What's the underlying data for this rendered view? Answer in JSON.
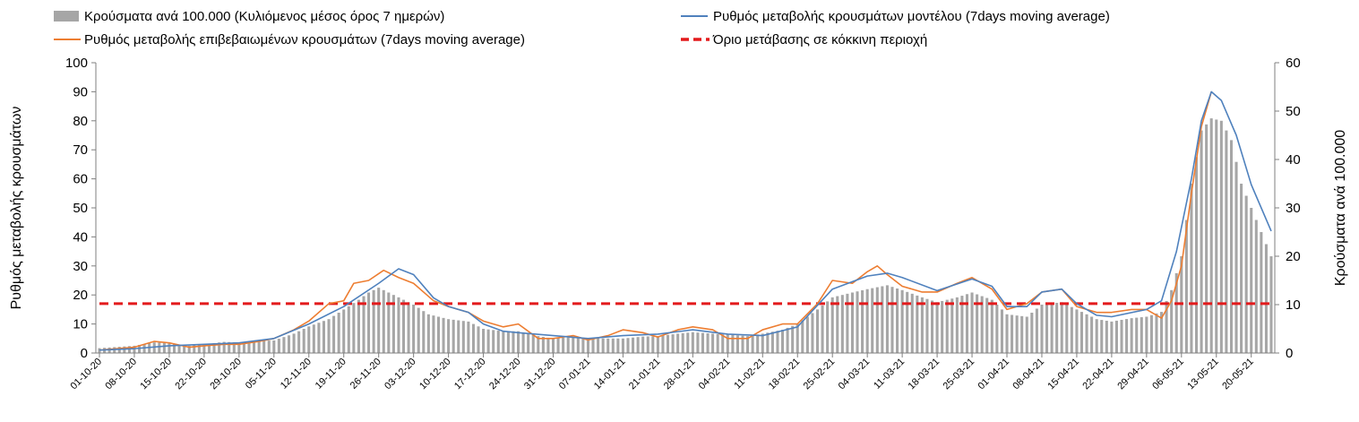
{
  "chart_data": {
    "type": "bar+line",
    "title": "",
    "legend_placement": "top",
    "legend": {
      "bars": "Κρούσματα ανά 100.000 (Κυλιόμενος μέσος όρος 7 ημερών)",
      "model": "Ρυθμός μεταβολής κρουσμάτων μοντέλου (7days moving average)",
      "confirmed": "Ρυθμός μεταβολής επιβεβαιωμένων κρουσμάτων (7days moving average)",
      "threshold": "Όριο μετάβασης σε κόκκινη περιοχή"
    },
    "ylabel_left": "Ρυθμός μεταβολής κρουσμάτων",
    "ylabel_right": "Κρούσματα ανά 100.000",
    "ylim_left": [
      0,
      100
    ],
    "ylim_right": [
      0,
      60
    ],
    "yticks_left": [
      "0",
      "10",
      "20",
      "30",
      "40",
      "50",
      "60",
      "70",
      "80",
      "90",
      "100"
    ],
    "yticks_right": [
      "0",
      "10",
      "20",
      "30",
      "40",
      "50",
      "60"
    ],
    "grid": false,
    "x_start": "2020-10-01",
    "x_end": "2021-05-24",
    "xtick_labels": [
      "01-10-20",
      "08-10-20",
      "15-10-20",
      "22-10-20",
      "29-10-20",
      "05-11-20",
      "12-11-20",
      "19-11-20",
      "26-11-20",
      "03-12-20",
      "10-12-20",
      "17-12-20",
      "24-12-20",
      "31-12-20",
      "07-01-21",
      "14-01-21",
      "21-01-21",
      "28-01-21",
      "04-02-21",
      "11-02-21",
      "18-02-21",
      "25-02-21",
      "04-03-21",
      "11-03-21",
      "18-03-21",
      "25-03-21",
      "01-04-21",
      "08-04-21",
      "15-04-21",
      "22-04-21",
      "29-04-21",
      "06-05-21",
      "13-05-21",
      "20-05-21"
    ],
    "threshold_value": 17,
    "colors": {
      "bars": "#a6a6a6",
      "model": "#4f81bd",
      "confirmed": "#ed7d31",
      "threshold": "#e31a1c"
    },
    "bars_per_100k": [
      [
        "2020-10-01",
        1
      ],
      [
        "2020-10-08",
        1.5
      ],
      [
        "2020-10-12",
        2.2
      ],
      [
        "2020-10-15",
        2
      ],
      [
        "2020-10-19",
        1.5
      ],
      [
        "2020-10-22",
        1.8
      ],
      [
        "2020-10-26",
        2.3
      ],
      [
        "2020-10-29",
        2.2
      ],
      [
        "2020-11-02",
        2.5
      ],
      [
        "2020-11-05",
        2.6
      ],
      [
        "2020-11-09",
        4
      ],
      [
        "2020-11-12",
        5.5
      ],
      [
        "2020-11-16",
        7
      ],
      [
        "2020-11-19",
        9
      ],
      [
        "2020-11-22",
        11
      ],
      [
        "2020-11-24",
        12.5
      ],
      [
        "2020-11-26",
        13.5
      ],
      [
        "2020-11-28",
        12.5
      ],
      [
        "2020-11-30",
        11.5
      ],
      [
        "2020-12-03",
        10
      ],
      [
        "2020-12-06",
        8
      ],
      [
        "2020-12-10",
        7
      ],
      [
        "2020-12-14",
        6.5
      ],
      [
        "2020-12-17",
        5
      ],
      [
        "2020-12-21",
        4.5
      ],
      [
        "2020-12-24",
        4.5
      ],
      [
        "2020-12-28",
        3.5
      ],
      [
        "2020-12-31",
        3
      ],
      [
        "2021-01-04",
        3.3
      ],
      [
        "2021-01-07",
        3.1
      ],
      [
        "2021-01-11",
        3
      ],
      [
        "2021-01-14",
        3
      ],
      [
        "2021-01-18",
        3.4
      ],
      [
        "2021-01-21",
        3.5
      ],
      [
        "2021-01-25",
        4
      ],
      [
        "2021-01-28",
        4.3
      ],
      [
        "2021-02-01",
        4
      ],
      [
        "2021-02-04",
        3.8
      ],
      [
        "2021-02-08",
        3.5
      ],
      [
        "2021-02-11",
        4
      ],
      [
        "2021-02-15",
        4.8
      ],
      [
        "2021-02-18",
        6
      ],
      [
        "2021-02-22",
        9
      ],
      [
        "2021-02-25",
        11.5
      ],
      [
        "2021-03-01",
        12.5
      ],
      [
        "2021-03-04",
        13.2
      ],
      [
        "2021-03-08",
        14
      ],
      [
        "2021-03-11",
        13
      ],
      [
        "2021-03-15",
        11.5
      ],
      [
        "2021-03-18",
        10.5
      ],
      [
        "2021-03-22",
        11.5
      ],
      [
        "2021-03-25",
        12.5
      ],
      [
        "2021-03-29",
        11
      ],
      [
        "2021-04-01",
        8
      ],
      [
        "2021-04-05",
        7.5
      ],
      [
        "2021-04-08",
        10
      ],
      [
        "2021-04-12",
        10.5
      ],
      [
        "2021-04-15",
        9
      ],
      [
        "2021-04-19",
        7
      ],
      [
        "2021-04-22",
        6.5
      ],
      [
        "2021-04-26",
        7.2
      ],
      [
        "2021-04-29",
        7.5
      ],
      [
        "2021-05-02",
        8.5
      ],
      [
        "2021-05-04",
        13
      ],
      [
        "2021-05-06",
        20
      ],
      [
        "2021-05-08",
        35
      ],
      [
        "2021-05-10",
        46
      ],
      [
        "2021-05-12",
        48.5
      ],
      [
        "2021-05-14",
        48
      ],
      [
        "2021-05-16",
        44
      ],
      [
        "2021-05-18",
        35
      ],
      [
        "2021-05-20",
        30
      ],
      [
        "2021-05-22",
        25
      ],
      [
        "2021-05-24",
        20
      ]
    ],
    "model_rate": [
      [
        "2020-10-01",
        1
      ],
      [
        "2020-10-08",
        1.5
      ],
      [
        "2020-10-15",
        2.5
      ],
      [
        "2020-10-22",
        3
      ],
      [
        "2020-10-29",
        3.5
      ],
      [
        "2020-11-05",
        5
      ],
      [
        "2020-11-12",
        10
      ],
      [
        "2020-11-19",
        16
      ],
      [
        "2020-11-26",
        24
      ],
      [
        "2020-11-30",
        29
      ],
      [
        "2020-12-03",
        27
      ],
      [
        "2020-12-07",
        19
      ],
      [
        "2020-12-10",
        16
      ],
      [
        "2020-12-14",
        14
      ],
      [
        "2020-12-17",
        10
      ],
      [
        "2020-12-21",
        7.5
      ],
      [
        "2020-12-24",
        7
      ],
      [
        "2020-12-31",
        6
      ],
      [
        "2021-01-07",
        5
      ],
      [
        "2021-01-14",
        6
      ],
      [
        "2021-01-21",
        6.5
      ],
      [
        "2021-01-28",
        8
      ],
      [
        "2021-02-04",
        6.5
      ],
      [
        "2021-02-11",
        6
      ],
      [
        "2021-02-18",
        9
      ],
      [
        "2021-02-25",
        22
      ],
      [
        "2021-03-04",
        26.5
      ],
      [
        "2021-03-08",
        27.5
      ],
      [
        "2021-03-11",
        26
      ],
      [
        "2021-03-18",
        21.5
      ],
      [
        "2021-03-25",
        25.5
      ],
      [
        "2021-03-29",
        23
      ],
      [
        "2021-04-01",
        16
      ],
      [
        "2021-04-05",
        16
      ],
      [
        "2021-04-08",
        21
      ],
      [
        "2021-04-12",
        22
      ],
      [
        "2021-04-15",
        17
      ],
      [
        "2021-04-19",
        13
      ],
      [
        "2021-04-22",
        12.5
      ],
      [
        "2021-04-29",
        15
      ],
      [
        "2021-05-02",
        18
      ],
      [
        "2021-05-05",
        35
      ],
      [
        "2021-05-08",
        60
      ],
      [
        "2021-05-10",
        80
      ],
      [
        "2021-05-12",
        90
      ],
      [
        "2021-05-14",
        87
      ],
      [
        "2021-05-17",
        75
      ],
      [
        "2021-05-20",
        58
      ],
      [
        "2021-05-24",
        42
      ]
    ],
    "confirmed_rate": [
      [
        "2020-10-01",
        1
      ],
      [
        "2020-10-08",
        2
      ],
      [
        "2020-10-12",
        4
      ],
      [
        "2020-10-15",
        3.5
      ],
      [
        "2020-10-19",
        2
      ],
      [
        "2020-10-22",
        2.5
      ],
      [
        "2020-10-26",
        3
      ],
      [
        "2020-10-29",
        3
      ],
      [
        "2020-11-02",
        4
      ],
      [
        "2020-11-05",
        5
      ],
      [
        "2020-11-09",
        8
      ],
      [
        "2020-11-12",
        11
      ],
      [
        "2020-11-16",
        17
      ],
      [
        "2020-11-19",
        18
      ],
      [
        "2020-11-21",
        24
      ],
      [
        "2020-11-24",
        25
      ],
      [
        "2020-11-27",
        28.5
      ],
      [
        "2020-11-30",
        26
      ],
      [
        "2020-12-03",
        24
      ],
      [
        "2020-12-07",
        18
      ],
      [
        "2020-12-10",
        16
      ],
      [
        "2020-12-14",
        14
      ],
      [
        "2020-12-17",
        11
      ],
      [
        "2020-12-21",
        9
      ],
      [
        "2020-12-24",
        10
      ],
      [
        "2020-12-28",
        5
      ],
      [
        "2020-12-31",
        5
      ],
      [
        "2021-01-04",
        6
      ],
      [
        "2021-01-07",
        4.5
      ],
      [
        "2021-01-11",
        6
      ],
      [
        "2021-01-14",
        8
      ],
      [
        "2021-01-18",
        7
      ],
      [
        "2021-01-21",
        5.5
      ],
      [
        "2021-01-25",
        8
      ],
      [
        "2021-01-28",
        9
      ],
      [
        "2021-02-01",
        8
      ],
      [
        "2021-02-04",
        5
      ],
      [
        "2021-02-08",
        5
      ],
      [
        "2021-02-11",
        8
      ],
      [
        "2021-02-15",
        10
      ],
      [
        "2021-02-18",
        10
      ],
      [
        "2021-02-22",
        17
      ],
      [
        "2021-02-25",
        25
      ],
      [
        "2021-03-01",
        24
      ],
      [
        "2021-03-04",
        28
      ],
      [
        "2021-03-06",
        30
      ],
      [
        "2021-03-08",
        27
      ],
      [
        "2021-03-11",
        23
      ],
      [
        "2021-03-15",
        21
      ],
      [
        "2021-03-18",
        21
      ],
      [
        "2021-03-22",
        24
      ],
      [
        "2021-03-25",
        26
      ],
      [
        "2021-03-29",
        22
      ],
      [
        "2021-04-01",
        15
      ],
      [
        "2021-04-05",
        17
      ],
      [
        "2021-04-08",
        21
      ],
      [
        "2021-04-12",
        22
      ],
      [
        "2021-04-15",
        16
      ],
      [
        "2021-04-19",
        14
      ],
      [
        "2021-04-22",
        14
      ],
      [
        "2021-04-26",
        15
      ],
      [
        "2021-04-29",
        15
      ],
      [
        "2021-05-02",
        12
      ],
      [
        "2021-05-04",
        18
      ],
      [
        "2021-05-06",
        30
      ],
      [
        "2021-05-08",
        55
      ],
      [
        "2021-05-10",
        78
      ],
      [
        "2021-05-12",
        90
      ]
    ]
  }
}
